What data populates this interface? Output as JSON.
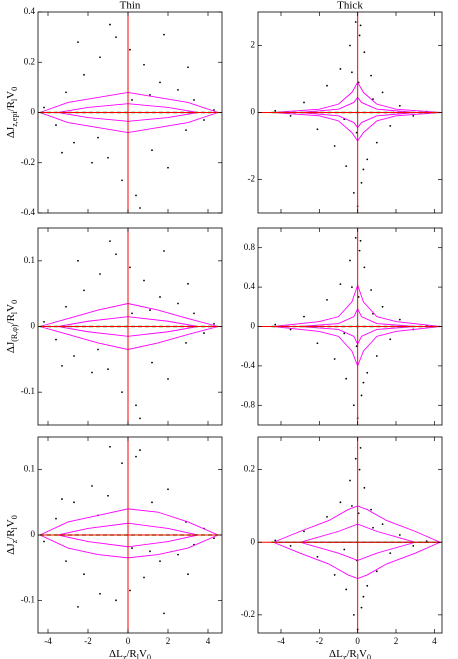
{
  "chart_data": [
    {
      "type": "scatter",
      "title": "Thin",
      "ylabel": [
        {
          "text": "ΔJ"
        },
        {
          "text": "z,epi",
          "sub": true
        },
        {
          "text": "/R"
        },
        {
          "text": "l",
          "sub": true
        },
        {
          "text": "V"
        },
        {
          "text": "0",
          "sub": true
        }
      ],
      "xlim": [
        -4.5,
        4.7
      ],
      "xticks": [
        -4,
        -2,
        0,
        2,
        4
      ],
      "show_xtick_labels": false,
      "ylim": [
        -0.4,
        0.4
      ],
      "yticks": [
        -0.4,
        -0.2,
        0,
        0.2,
        0.4
      ],
      "point_color": "#000000",
      "contour_color": "#ff00ff",
      "reference_lines": {
        "x": 0,
        "y": 0,
        "color": "#ff0000"
      },
      "x": [
        -4.2,
        -3.6,
        -3.1,
        -2.7,
        -2.2,
        -1.8,
        -1.4,
        -1.0,
        -0.6,
        -0.3,
        0.1,
        0.4,
        0.8,
        1.2,
        1.6,
        2.0,
        2.5,
        2.9,
        3.3,
        3.8,
        4.3,
        -2.5,
        -0.9,
        0.6,
        1.8,
        -1.5,
        0.2,
        3.0,
        -3.3,
        1.1
      ],
      "y": [
        0.02,
        -0.05,
        0.08,
        -0.12,
        0.15,
        -0.2,
        0.22,
        -0.18,
        0.3,
        -0.27,
        0.25,
        -0.33,
        0.19,
        -0.15,
        0.12,
        -0.22,
        0.09,
        -0.07,
        0.05,
        -0.03,
        0.01,
        0.28,
        0.35,
        -0.38,
        0.31,
        -0.1,
        0.05,
        0.18,
        -0.16,
        0.07
      ],
      "contours": [
        {
          "x": [
            -4.4,
            -3,
            -1.5,
            0,
            1.5,
            3,
            4.5,
            3,
            1.5,
            0,
            -1.5,
            -3
          ],
          "y": [
            0,
            0.04,
            0.06,
            0.08,
            0.06,
            0.04,
            0,
            -0.04,
            -0.06,
            -0.08,
            -0.06,
            -0.04
          ]
        },
        {
          "x": [
            -3.5,
            -2,
            0,
            2,
            3.5,
            2,
            0,
            -2
          ],
          "y": [
            0,
            0.02,
            0.035,
            0.02,
            0,
            -0.02,
            -0.035,
            -0.02
          ]
        }
      ],
      "lines": [
        {
          "color": "#0000ff",
          "dash": false,
          "x": [
            -4.4,
            4.5
          ],
          "y": [
            0,
            0
          ]
        },
        {
          "color": "#00a000",
          "dash": true,
          "x": [
            -4.4,
            -3,
            -1.5,
            0,
            1.5,
            3,
            4.5
          ],
          "y": [
            0,
            0,
            0,
            0,
            0,
            0,
            0
          ]
        }
      ]
    },
    {
      "type": "scatter",
      "title": "Thick",
      "xlim": [
        -5.2,
        4.4
      ],
      "xticks": [
        -4,
        -2,
        0,
        2,
        4
      ],
      "show_xtick_labels": false,
      "ylim": [
        -3,
        3
      ],
      "yticks": [
        -2,
        0,
        2
      ],
      "point_color": "#000000",
      "contour_color": "#ff00ff",
      "reference_lines": {
        "x": 0,
        "y": 0,
        "color": "#ff0000"
      },
      "x": [
        -4.3,
        -3.5,
        -2.8,
        -2.1,
        -1.6,
        -1.2,
        -0.9,
        -0.6,
        -0.4,
        -0.2,
        -0.1,
        0.0,
        0.1,
        0.2,
        0.35,
        0.5,
        0.7,
        1.0,
        1.3,
        1.7,
        2.2,
        2.9,
        3.6,
        -0.3,
        0.3,
        0.05,
        -0.05,
        0.15,
        -0.7,
        0.8
      ],
      "y": [
        0.05,
        -0.1,
        0.3,
        -0.5,
        0.8,
        -1.0,
        1.3,
        -1.6,
        2.0,
        -2.4,
        2.7,
        -2.8,
        2.3,
        -2.1,
        1.8,
        -1.4,
        1.1,
        -0.9,
        0.6,
        -0.4,
        0.2,
        -0.1,
        0.03,
        1.2,
        -1.7,
        0.9,
        -0.6,
        2.6,
        -0.2,
        0.4
      ],
      "contours": [
        {
          "x": [
            -4.4,
            -2,
            -1,
            -0.3,
            0,
            0.3,
            1,
            2,
            4.3,
            2,
            1,
            0.3,
            0,
            -0.3,
            -1,
            -2
          ],
          "y": [
            0,
            0.1,
            0.25,
            0.6,
            0.9,
            0.6,
            0.25,
            0.1,
            0,
            -0.1,
            -0.25,
            -0.6,
            -0.85,
            -0.6,
            -0.25,
            -0.1
          ]
        },
        {
          "x": [
            -3,
            -1,
            -0.2,
            0,
            0.2,
            1,
            3,
            1,
            0.2,
            0,
            -0.2,
            -1
          ],
          "y": [
            0,
            0.1,
            0.3,
            0.45,
            0.3,
            0.1,
            0,
            -0.1,
            -0.3,
            -0.45,
            -0.3,
            -0.1
          ]
        }
      ],
      "lines": [
        {
          "color": "#0000ff",
          "dash": false,
          "x": [
            -4.5,
            4.3
          ],
          "y": [
            0,
            0
          ]
        },
        {
          "color": "#00a000",
          "dash": true,
          "x": [
            -4.5,
            -3,
            -1.5,
            0,
            1.5,
            3,
            4.3
          ],
          "y": [
            0,
            0,
            0,
            0,
            0,
            0,
            0
          ]
        }
      ]
    },
    {
      "type": "scatter",
      "ylabel": [
        {
          "text": "ΔJ"
        },
        {
          "text": "(R,φ)",
          "sub": true
        },
        {
          "text": "/R"
        },
        {
          "text": "l",
          "sub": true
        },
        {
          "text": "V"
        },
        {
          "text": "0",
          "sub": true
        }
      ],
      "xlim": [
        -4.5,
        4.7
      ],
      "xticks": [
        -4,
        -2,
        0,
        2,
        4
      ],
      "show_xtick_labels": false,
      "ylim": [
        -0.15,
        0.15
      ],
      "yticks": [
        -0.1,
        0,
        0.1
      ],
      "point_color": "#000000",
      "contour_color": "#ff00ff",
      "reference_lines": {
        "x": 0,
        "y": 0,
        "color": "#ff0000"
      },
      "x": [
        -4.2,
        -3.6,
        -3.1,
        -2.7,
        -2.2,
        -1.8,
        -1.4,
        -1.0,
        -0.6,
        -0.3,
        0.1,
        0.4,
        0.8,
        1.2,
        1.6,
        2.0,
        2.5,
        2.9,
        3.3,
        3.8,
        4.3,
        -2.5,
        -0.9,
        0.6,
        1.8,
        -1.5,
        0.2,
        3.0,
        -3.3,
        1.1
      ],
      "y": [
        0.007,
        -0.02,
        0.03,
        -0.045,
        0.055,
        -0.07,
        0.08,
        -0.065,
        0.11,
        -0.1,
        0.09,
        -0.12,
        0.07,
        -0.055,
        0.045,
        -0.08,
        0.035,
        -0.025,
        0.02,
        -0.01,
        0.004,
        0.1,
        0.13,
        -0.14,
        0.115,
        -0.035,
        0.02,
        0.065,
        -0.06,
        0.025
      ],
      "contours": [
        {
          "x": [
            -4.4,
            -3,
            -1.5,
            0,
            1.5,
            3,
            4.5,
            3,
            1.5,
            0,
            -1.5,
            -3
          ],
          "y": [
            0,
            0.012,
            0.025,
            0.035,
            0.025,
            0.012,
            0,
            -0.012,
            -0.025,
            -0.035,
            -0.025,
            -0.012
          ]
        },
        {
          "x": [
            -3.5,
            -2,
            0,
            2,
            3.5,
            2,
            0,
            -2
          ],
          "y": [
            0,
            0.008,
            0.015,
            0.008,
            0,
            -0.008,
            -0.015,
            -0.008
          ]
        }
      ],
      "lines": [
        {
          "color": "#0000ff",
          "dash": false,
          "x": [
            -4.4,
            4.5
          ],
          "y": [
            0,
            0
          ]
        },
        {
          "color": "#00a000",
          "dash": true,
          "x": [
            -4.4,
            -3,
            -1.5,
            0,
            1.5,
            3,
            4.5
          ],
          "y": [
            0,
            0,
            0,
            0,
            0,
            0,
            0
          ]
        }
      ]
    },
    {
      "type": "scatter",
      "xlim": [
        -5.2,
        4.4
      ],
      "xticks": [
        -4,
        -2,
        0,
        2,
        4
      ],
      "show_xtick_labels": false,
      "ylim": [
        -1,
        1
      ],
      "yticks": [
        -0.8,
        -0.4,
        0,
        0.4,
        0.8
      ],
      "point_color": "#000000",
      "contour_color": "#ff00ff",
      "reference_lines": {
        "x": 0,
        "y": 0,
        "color": "#ff0000"
      },
      "x": [
        -4.3,
        -3.5,
        -2.8,
        -2.1,
        -1.6,
        -1.2,
        -0.9,
        -0.6,
        -0.4,
        -0.2,
        -0.1,
        0.0,
        0.1,
        0.2,
        0.35,
        0.5,
        0.7,
        1.0,
        1.3,
        1.7,
        2.2,
        2.9,
        3.6,
        -0.3,
        0.3,
        0.05,
        -0.05,
        0.15,
        -0.7,
        0.8
      ],
      "y": [
        0.02,
        -0.03,
        0.1,
        -0.17,
        0.27,
        -0.33,
        0.43,
        -0.53,
        0.67,
        -0.8,
        0.9,
        -0.93,
        0.77,
        -0.7,
        0.6,
        -0.47,
        0.37,
        -0.3,
        0.2,
        -0.13,
        0.07,
        -0.03,
        0.01,
        0.4,
        -0.57,
        0.3,
        -0.2,
        0.87,
        -0.07,
        0.13
      ],
      "contours": [
        {
          "x": [
            -4.4,
            -2,
            -1,
            -0.3,
            0,
            0.3,
            1,
            2,
            4.3,
            2,
            1,
            0.3,
            0,
            -0.3,
            -1,
            -2
          ],
          "y": [
            0,
            0.05,
            0.1,
            0.25,
            0.42,
            0.25,
            0.1,
            0.05,
            0,
            -0.05,
            -0.1,
            -0.25,
            -0.4,
            -0.25,
            -0.1,
            -0.05
          ]
        },
        {
          "x": [
            -3,
            -1,
            -0.2,
            0,
            0.2,
            1,
            3,
            1,
            0.2,
            0,
            -0.2,
            -1
          ],
          "y": [
            0,
            0.03,
            0.1,
            0.18,
            0.1,
            0.03,
            0,
            -0.03,
            -0.1,
            -0.18,
            -0.1,
            -0.03
          ]
        }
      ],
      "lines": [
        {
          "color": "#0000ff",
          "dash": false,
          "x": [
            -4.5,
            4.3
          ],
          "y": [
            0,
            0
          ]
        },
        {
          "color": "#00a000",
          "dash": true,
          "x": [
            -4.5,
            -3,
            -1.5,
            0,
            1.5,
            3,
            4.3
          ],
          "y": [
            0,
            0,
            0,
            0,
            0,
            0,
            0
          ]
        }
      ]
    },
    {
      "type": "scatter",
      "ylabel": [
        {
          "text": "ΔJ"
        },
        {
          "text": "z",
          "sub": true
        },
        {
          "text": "/R"
        },
        {
          "text": "l",
          "sub": true
        },
        {
          "text": "V"
        },
        {
          "text": "0",
          "sub": true
        }
      ],
      "xlabel": [
        {
          "text": "ΔL"
        },
        {
          "text": "z",
          "sub": true
        },
        {
          "text": "/R"
        },
        {
          "text": "l",
          "sub": true
        },
        {
          "text": "V"
        },
        {
          "text": "0",
          "sub": true
        }
      ],
      "xlim": [
        -4.5,
        4.7
      ],
      "xticks": [
        -4,
        -2,
        0,
        2,
        4
      ],
      "show_xtick_labels": true,
      "ylim": [
        -0.15,
        0.15
      ],
      "yticks": [
        -0.1,
        0,
        0.1
      ],
      "point_color": "#000000",
      "contour_color": "#ff00ff",
      "reference_lines": {
        "x": 0,
        "y": 0,
        "color": "#ff0000"
      },
      "x": [
        -4.2,
        -3.6,
        -3.1,
        -2.7,
        -2.2,
        -1.8,
        -1.4,
        -1.0,
        -0.6,
        -0.3,
        0.1,
        0.4,
        0.8,
        1.2,
        1.6,
        2.0,
        2.5,
        2.9,
        3.3,
        3.8,
        4.3,
        -2.5,
        -0.9,
        0.6,
        1.8,
        -1.5,
        0.2,
        3.0,
        -3.3,
        1.1
      ],
      "y": [
        -0.01,
        0.025,
        -0.04,
        0.05,
        -0.06,
        0.075,
        -0.09,
        0.06,
        -0.1,
        0.11,
        -0.085,
        0.12,
        -0.065,
        0.05,
        -0.04,
        0.07,
        -0.03,
        0.02,
        -0.015,
        0.01,
        -0.005,
        -0.11,
        0.135,
        0.13,
        -0.12,
        0.03,
        -0.02,
        -0.06,
        0.055,
        -0.025
      ],
      "contours": [
        {
          "x": [
            -4.4,
            -3,
            -1.5,
            0,
            1.5,
            3,
            4.5,
            3,
            1.5,
            0,
            -1.5,
            -3
          ],
          "y": [
            0,
            0.02,
            0.03,
            0.04,
            0.035,
            0.02,
            0,
            -0.02,
            -0.03,
            -0.035,
            -0.03,
            -0.02
          ]
        },
        {
          "x": [
            -3.5,
            -2,
            0,
            2,
            3.5,
            2,
            0,
            -2
          ],
          "y": [
            0,
            0.01,
            0.018,
            0.01,
            0,
            -0.01,
            -0.018,
            -0.01
          ]
        }
      ],
      "lines": [
        {
          "color": "#0000ff",
          "dash": false,
          "x": [
            -4.4,
            4.5
          ],
          "y": [
            0,
            0
          ]
        },
        {
          "color": "#00a000",
          "dash": true,
          "x": [
            -4.4,
            -3,
            -1.5,
            0,
            1.5,
            3,
            4.5
          ],
          "y": [
            0,
            0,
            0,
            0,
            0,
            0,
            0
          ]
        }
      ]
    },
    {
      "type": "scatter",
      "xlabel": [
        {
          "text": "ΔL"
        },
        {
          "text": "z",
          "sub": true
        },
        {
          "text": "/R"
        },
        {
          "text": "l",
          "sub": true
        },
        {
          "text": "V"
        },
        {
          "text": "0",
          "sub": true
        }
      ],
      "xlim": [
        -5.2,
        4.4
      ],
      "xticks": [
        -4,
        -2,
        0,
        2,
        4
      ],
      "show_xtick_labels": true,
      "ylim": [
        -0.25,
        0.29
      ],
      "yticks": [
        -0.2,
        0,
        0.2
      ],
      "point_color": "#000000",
      "contour_color": "#ff00ff",
      "reference_lines": {
        "x": 0,
        "y": 0,
        "color": "#ff0000"
      },
      "x": [
        -4.3,
        -3.5,
        -2.8,
        -2.1,
        -1.6,
        -1.2,
        -0.9,
        -0.6,
        -0.4,
        -0.2,
        -0.1,
        0.0,
        0.1,
        0.2,
        0.35,
        0.5,
        0.7,
        1.0,
        1.3,
        1.7,
        2.2,
        2.9,
        3.6,
        -0.3,
        0.3,
        0.05,
        -0.05,
        0.15,
        -0.7,
        0.8
      ],
      "y": [
        0.005,
        -0.01,
        0.03,
        -0.04,
        0.07,
        -0.09,
        0.11,
        -0.13,
        0.17,
        -0.2,
        0.23,
        -0.24,
        0.2,
        -0.18,
        0.15,
        -0.12,
        0.09,
        -0.08,
        0.05,
        -0.03,
        0.02,
        -0.01,
        0.003,
        0.1,
        -0.15,
        0.08,
        -0.05,
        0.26,
        -0.02,
        0.04
      ],
      "contours": [
        {
          "x": [
            -4.4,
            -3,
            -1.5,
            -0.5,
            0,
            0.5,
            1.5,
            3,
            4.3,
            3,
            1.5,
            0.5,
            0,
            -0.5,
            -1.5,
            -3
          ],
          "y": [
            0,
            0.03,
            0.06,
            0.09,
            0.1,
            0.09,
            0.06,
            0.03,
            0,
            -0.03,
            -0.06,
            -0.09,
            -0.1,
            -0.09,
            -0.06,
            -0.03
          ]
        },
        {
          "x": [
            -3,
            -1,
            0,
            1,
            3,
            1,
            0,
            -1
          ],
          "y": [
            0,
            0.03,
            0.05,
            0.03,
            0,
            -0.03,
            -0.05,
            -0.03
          ]
        }
      ],
      "lines": [
        {
          "color": "#0000ff",
          "dash": false,
          "x": [
            -4.5,
            4.3
          ],
          "y": [
            0,
            0
          ]
        },
        {
          "color": "#00a000",
          "dash": true,
          "x": [
            -4.5,
            -3,
            -1.5,
            0,
            1.5,
            3,
            4.3
          ],
          "y": [
            0,
            0,
            0,
            0,
            0,
            0,
            0
          ]
        }
      ]
    }
  ]
}
